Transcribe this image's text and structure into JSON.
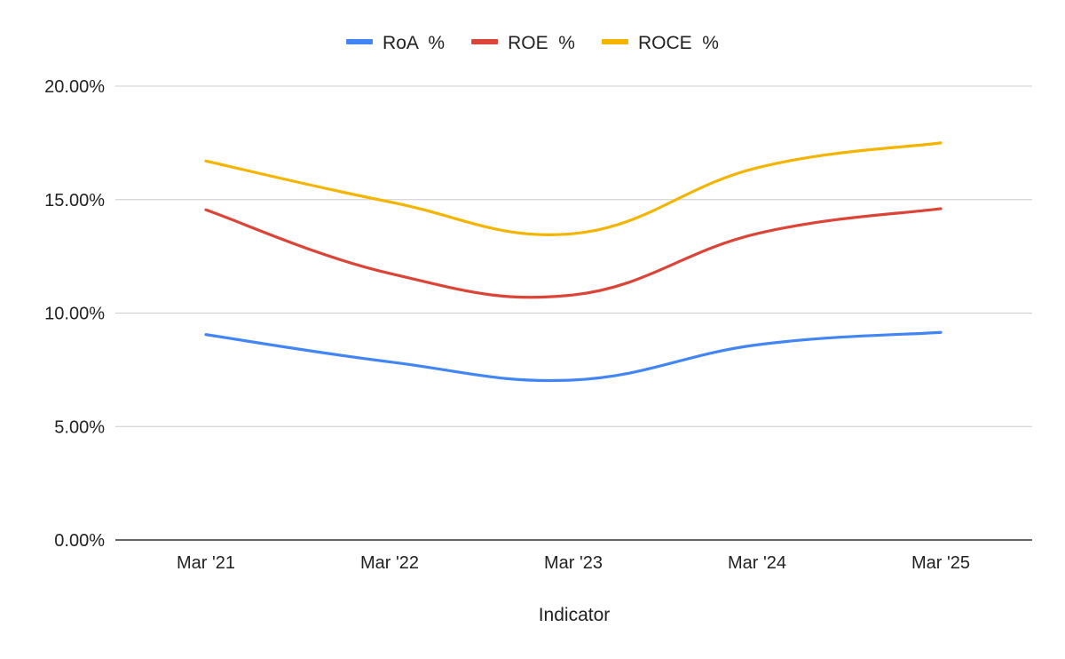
{
  "chart_data": {
    "type": "line",
    "xlabel": "Indicator",
    "ylabel": "",
    "categories": [
      "Mar '21",
      "Mar '22",
      "Mar '23",
      "Mar '24",
      "Mar '25"
    ],
    "y_ticks": [
      "0.00%",
      "5.00%",
      "10.00%",
      "15.00%",
      "20.00%"
    ],
    "ylim": [
      0,
      20
    ],
    "y_unit": "%",
    "grid": true,
    "legend_position": "top",
    "series": [
      {
        "name": "RoA  %",
        "color": "#4285F4",
        "values": [
          9.05,
          7.85,
          7.05,
          8.6,
          9.15
        ]
      },
      {
        "name": "ROE  %",
        "color": "#DB4437",
        "values": [
          14.55,
          11.75,
          10.8,
          13.5,
          14.6
        ]
      },
      {
        "name": "ROCE  %",
        "color": "#F4B400",
        "values": [
          16.7,
          14.9,
          13.5,
          16.4,
          17.5
        ]
      }
    ]
  }
}
